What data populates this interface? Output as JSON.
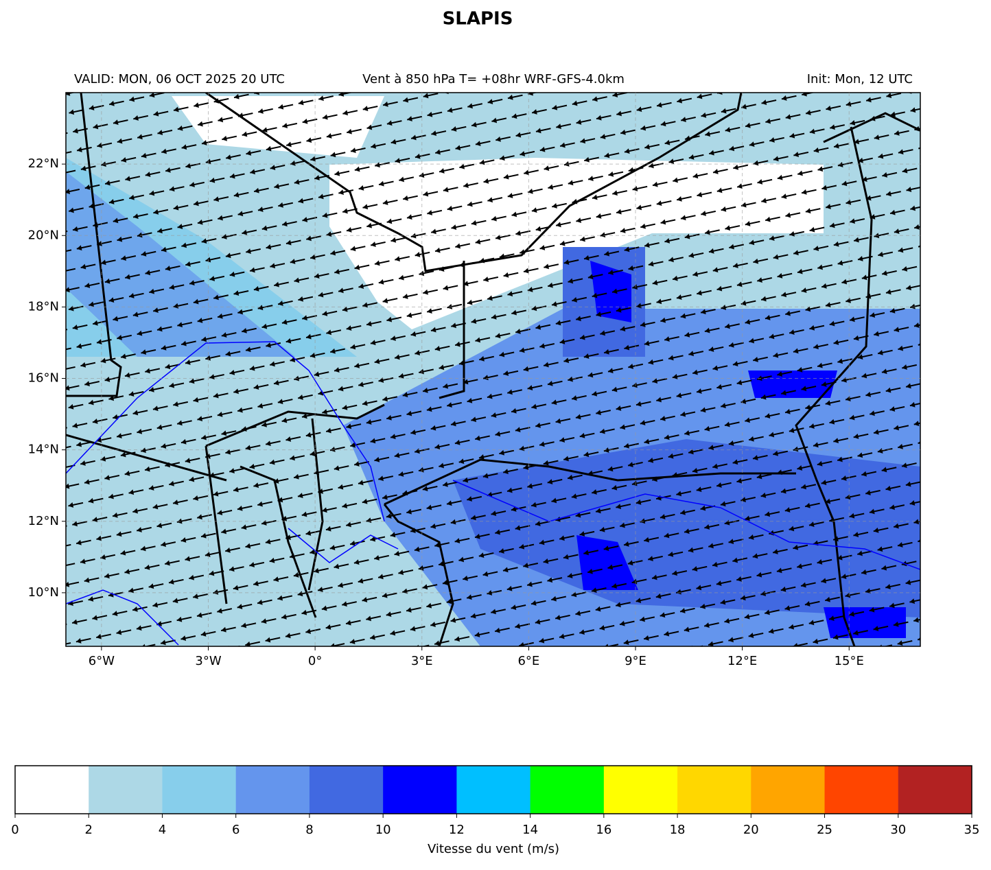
{
  "header": {
    "title": "SLAPIS",
    "valid": "VALID: MON, 06 OCT 2025 20 UTC",
    "subtitle": "Vent à 850 hPa T= +08hr  WRF-GFS-4.0km",
    "init": "Init: Mon, 12 UTC"
  },
  "map": {
    "xlim": [
      -7,
      17
    ],
    "ylim": [
      8.5,
      24
    ],
    "xticks": [
      {
        "value": -6,
        "label": "6°W"
      },
      {
        "value": -3,
        "label": "3°W"
      },
      {
        "value": 0,
        "label": "0°"
      },
      {
        "value": 3,
        "label": "3°E"
      },
      {
        "value": 6,
        "label": "6°E"
      },
      {
        "value": 9,
        "label": "9°E"
      },
      {
        "value": 12,
        "label": "12°E"
      },
      {
        "value": 15,
        "label": "15°E"
      }
    ],
    "yticks": [
      {
        "value": 10,
        "label": "10°N"
      },
      {
        "value": 12,
        "label": "12°N"
      },
      {
        "value": 14,
        "label": "14°N"
      },
      {
        "value": 16,
        "label": "16°N"
      },
      {
        "value": 18,
        "label": "18°N"
      },
      {
        "value": 20,
        "label": "20°N"
      },
      {
        "value": 22,
        "label": "22°N"
      }
    ]
  },
  "colorbar": {
    "bounds": [
      0,
      2,
      4,
      6,
      8,
      10,
      12,
      14,
      16,
      18,
      20,
      25,
      30,
      35
    ],
    "colors": [
      "#ffffff",
      "#add8e6",
      "#87ceeb",
      "#6495ed",
      "#4169e1",
      "#0000ff",
      "#00bfff",
      "#00ff00",
      "#ffff00",
      "#ffd700",
      "#ffa500",
      "#ff4500",
      "#b22222"
    ],
    "label": "Vitesse du vent (m/s)"
  }
}
